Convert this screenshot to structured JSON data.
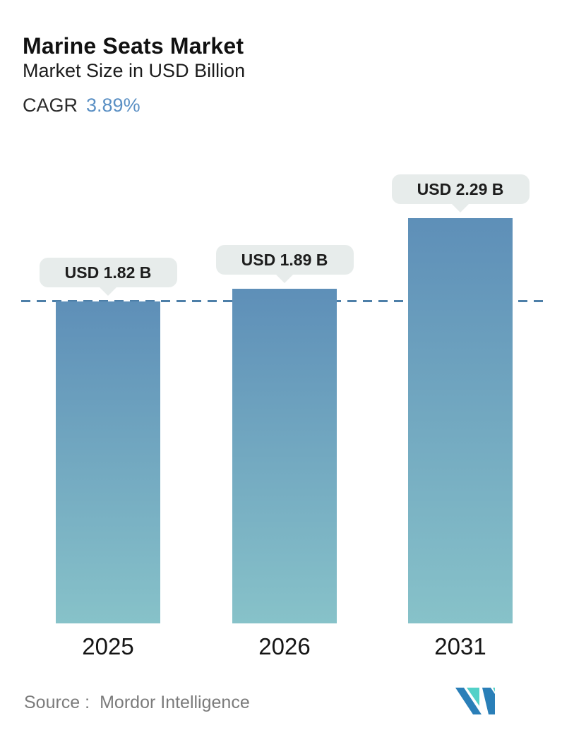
{
  "header": {
    "title": "Marine Seats Market",
    "subtitle": "Market Size in USD Billion",
    "cagr_label": "CAGR",
    "cagr_value": "3.89%"
  },
  "chart_data": {
    "type": "bar",
    "categories": [
      "2025",
      "2026",
      "2031"
    ],
    "values": [
      1.82,
      1.89,
      2.29
    ],
    "value_labels": [
      "USD 1.82 B",
      "USD 1.89 B",
      "USD 2.29 B"
    ],
    "title": "Marine Seats Market",
    "xlabel": "",
    "ylabel": "Market Size in USD Billion",
    "ylim": [
      0,
      2.7
    ],
    "grid": false,
    "legend": false,
    "reference_line": {
      "value": 1.82,
      "style": "dashed"
    }
  },
  "footer": {
    "source_label": "Source :",
    "source_value": "Mordor Intelligence"
  },
  "colors": {
    "text_dark": "#111111",
    "cagr_value": "#5b90c4",
    "bar_top": "#5e8fb8",
    "bar_bottom": "#87c2c9",
    "ref_line": "#4d7fa8",
    "callout_bg": "#e7eceb",
    "source_text": "#7b7b7b",
    "logo_teal": "#53d1c8",
    "logo_blue": "#2a7fb8"
  }
}
